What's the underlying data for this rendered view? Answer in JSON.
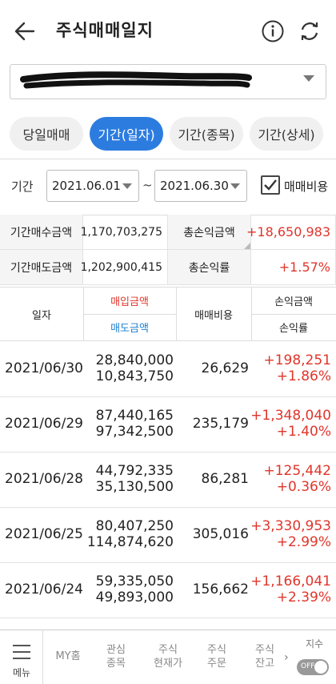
{
  "header": {
    "title": "주식매매일지"
  },
  "tabs": [
    {
      "label": "당일매매"
    },
    {
      "label": "기간(일자)"
    },
    {
      "label": "기간(종목)"
    },
    {
      "label": "기간(상세)"
    }
  ],
  "period": {
    "label": "기간",
    "start": "2021.06.01",
    "end": "2021.06.30",
    "separator": "~",
    "fee_checkbox_label": "매매비용",
    "fee_checked": true
  },
  "summary": {
    "buy_label": "기간매수금액",
    "buy_value": "1,170,703,275",
    "sell_label": "기간매도금액",
    "sell_value": "1,202,900,415",
    "pnl_label": "총손익금액",
    "pnl_value": "+18,650,983",
    "rate_label": "총손익률",
    "rate_value": "+1.57%"
  },
  "table": {
    "headers": {
      "date": "일자",
      "buy": "매입금액",
      "sell": "매도금액",
      "fee": "매매비용",
      "pnl": "손익금액",
      "rate": "손익률"
    },
    "rows": [
      {
        "date": "2021/06/30",
        "buy": "28,840,000",
        "sell": "10,843,750",
        "fee": "26,629",
        "pnl": "+198,251",
        "rate": "+1.86%"
      },
      {
        "date": "2021/06/29",
        "buy": "87,440,165",
        "sell": "97,342,500",
        "fee": "235,179",
        "pnl": "+1,348,040",
        "rate": "+1.40%"
      },
      {
        "date": "2021/06/28",
        "buy": "44,792,335",
        "sell": "35,130,500",
        "fee": "86,281",
        "pnl": "+125,442",
        "rate": "+0.36%"
      },
      {
        "date": "2021/06/25",
        "buy": "80,407,250",
        "sell": "114,874,620",
        "fee": "305,016",
        "pnl": "+3,330,953",
        "rate": "+2.99%"
      },
      {
        "date": "2021/06/24",
        "buy": "59,335,050",
        "sell": "49,893,000",
        "fee": "156,662",
        "pnl": "+1,166,041",
        "rate": "+2.39%"
      }
    ]
  },
  "bottom_nav": {
    "menu_label": "메뉴",
    "items": [
      {
        "line1": "MY홈",
        "line2": ""
      },
      {
        "line1": "관심",
        "line2": "종목"
      },
      {
        "line1": "주식",
        "line2": "현재가"
      },
      {
        "line1": "주식",
        "line2": "주문"
      },
      {
        "line1": "주식",
        "line2": "잔고"
      }
    ],
    "arrow": "›",
    "index_label": "지수",
    "toggle_label": "OFF"
  },
  "colors": {
    "accent": "#2c7ce0",
    "positive": "#e0352b",
    "sell_header": "#1e7fd0"
  }
}
